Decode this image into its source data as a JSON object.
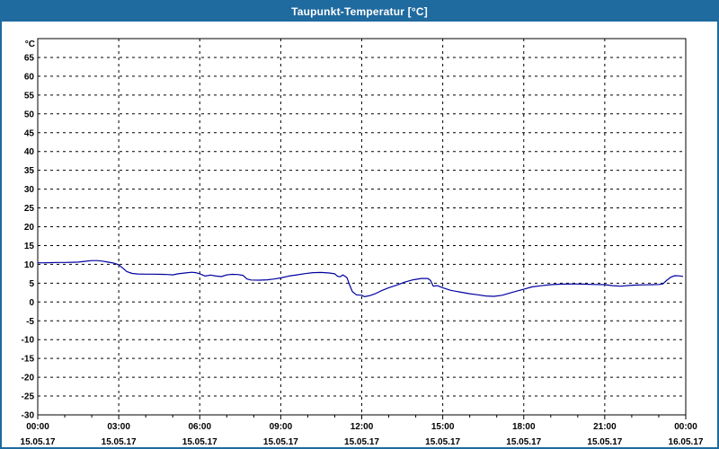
{
  "window": {
    "title": "Taupunkt-Temperatur [°C]",
    "title_bar_color": "#1f6a9e",
    "border_color": "#1f6a9e",
    "background_color": "#ffffff"
  },
  "chart_data": {
    "type": "line",
    "title": "Taupunkt-Temperatur [°C]",
    "ylabel": "°C",
    "xlabel": "",
    "ylim": [
      -30,
      70
    ],
    "y_tick_step": 5,
    "y_tick_labels": [
      "-30",
      "-25",
      "-20",
      "-15",
      "-10",
      "-5",
      "0",
      "5",
      "10",
      "15",
      "20",
      "25",
      "30",
      "35",
      "40",
      "45",
      "50",
      "55",
      "60",
      "65"
    ],
    "grid": "dashed",
    "grid_color": "#000000",
    "axis_color": "#000000",
    "x_major_tick_interval_hours": 3,
    "x_minor_tick_interval_hours": 1,
    "x_range_hours": [
      0,
      24
    ],
    "x_major_ticks": [
      {
        "time": "00:00",
        "date": "15.05.17"
      },
      {
        "time": "03:00",
        "date": "15.05.17"
      },
      {
        "time": "06:00",
        "date": "15.05.17"
      },
      {
        "time": "09:00",
        "date": "15.05.17"
      },
      {
        "time": "12:00",
        "date": "15.05.17"
      },
      {
        "time": "15:00",
        "date": "15.05.17"
      },
      {
        "time": "18:00",
        "date": "15.05.17"
      },
      {
        "time": "21:00",
        "date": "15.05.17"
      },
      {
        "time": "00:00",
        "date": "16.05.17"
      }
    ],
    "series": [
      {
        "name": "Taupunkt-Temperatur",
        "color": "#0000a0",
        "points": [
          [
            0,
            10.4
          ],
          [
            0.25,
            10.4
          ],
          [
            0.5,
            10.45
          ],
          [
            0.75,
            10.5
          ],
          [
            1,
            10.5
          ],
          [
            1.25,
            10.55
          ],
          [
            1.5,
            10.6
          ],
          [
            1.75,
            10.8
          ],
          [
            2,
            11.0
          ],
          [
            2.2,
            11.0
          ],
          [
            2.4,
            10.85
          ],
          [
            2.6,
            10.6
          ],
          [
            2.8,
            10.35
          ],
          [
            3,
            9.9
          ],
          [
            3.15,
            9.0
          ],
          [
            3.3,
            8.1
          ],
          [
            3.5,
            7.6
          ],
          [
            3.7,
            7.45
          ],
          [
            4,
            7.4
          ],
          [
            4.3,
            7.4
          ],
          [
            4.6,
            7.35
          ],
          [
            4.8,
            7.3
          ],
          [
            5,
            7.2
          ],
          [
            5.2,
            7.5
          ],
          [
            5.45,
            7.7
          ],
          [
            5.7,
            7.9
          ],
          [
            5.85,
            7.8
          ],
          [
            6,
            7.5
          ],
          [
            6.2,
            6.9
          ],
          [
            6.4,
            7.15
          ],
          [
            6.6,
            6.9
          ],
          [
            6.8,
            6.75
          ],
          [
            7,
            7.2
          ],
          [
            7.2,
            7.35
          ],
          [
            7.4,
            7.3
          ],
          [
            7.6,
            7.1
          ],
          [
            7.75,
            6.1
          ],
          [
            7.9,
            5.85
          ],
          [
            8.2,
            5.8
          ],
          [
            8.5,
            5.9
          ],
          [
            8.75,
            6.1
          ],
          [
            9,
            6.4
          ],
          [
            9.3,
            6.9
          ],
          [
            9.6,
            7.2
          ],
          [
            9.9,
            7.55
          ],
          [
            10.2,
            7.8
          ],
          [
            10.5,
            7.85
          ],
          [
            10.8,
            7.7
          ],
          [
            11,
            7.5
          ],
          [
            11.1,
            6.85
          ],
          [
            11.2,
            6.7
          ],
          [
            11.3,
            7.2
          ],
          [
            11.45,
            6.5
          ],
          [
            11.55,
            4.5
          ],
          [
            11.65,
            2.8
          ],
          [
            11.8,
            1.9
          ],
          [
            12,
            1.8
          ],
          [
            12.1,
            1.4
          ],
          [
            12.3,
            1.7
          ],
          [
            12.5,
            2.2
          ],
          [
            12.7,
            2.9
          ],
          [
            13,
            3.8
          ],
          [
            13.3,
            4.5
          ],
          [
            13.6,
            5.3
          ],
          [
            13.9,
            5.9
          ],
          [
            14.2,
            6.25
          ],
          [
            14.45,
            6.25
          ],
          [
            14.55,
            5.7
          ],
          [
            14.65,
            4.2
          ],
          [
            14.8,
            4.35
          ],
          [
            15,
            3.8
          ],
          [
            15.3,
            3.1
          ],
          [
            15.6,
            2.7
          ],
          [
            16,
            2.2
          ],
          [
            16.3,
            1.9
          ],
          [
            16.6,
            1.6
          ],
          [
            16.9,
            1.5
          ],
          [
            17.2,
            1.8
          ],
          [
            17.5,
            2.4
          ],
          [
            17.8,
            3.0
          ],
          [
            18,
            3.4
          ],
          [
            18.3,
            4.0
          ],
          [
            18.6,
            4.3
          ],
          [
            19,
            4.6
          ],
          [
            19.4,
            4.75
          ],
          [
            19.8,
            4.8
          ],
          [
            20.2,
            4.75
          ],
          [
            20.6,
            4.65
          ],
          [
            21,
            4.6
          ],
          [
            21.3,
            4.35
          ],
          [
            21.6,
            4.2
          ],
          [
            21.9,
            4.4
          ],
          [
            22.2,
            4.5
          ],
          [
            22.5,
            4.55
          ],
          [
            22.8,
            4.6
          ],
          [
            23,
            4.65
          ],
          [
            23.15,
            4.8
          ],
          [
            23.3,
            5.8
          ],
          [
            23.45,
            6.6
          ],
          [
            23.6,
            7.0
          ],
          [
            23.75,
            6.95
          ],
          [
            23.9,
            6.8
          ]
        ]
      }
    ]
  }
}
